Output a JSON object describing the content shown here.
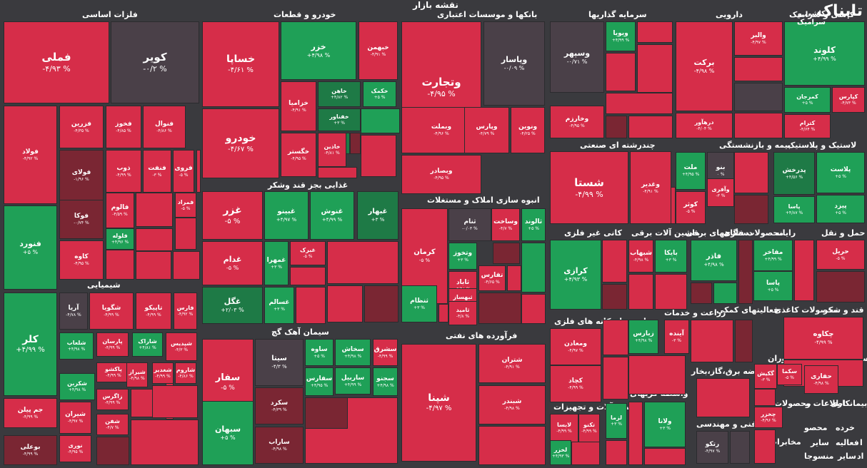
{
  "header": {
    "title": "نقشه بازار"
  },
  "logo": {
    "text": "تابناک",
    "subtitle": "کاشی و سرامیک"
  },
  "colors": {
    "red": "#d62d49",
    "red_dark": "#a8263c",
    "red_mid": "#c22a43",
    "maroon": "#7a2633",
    "dark": "#4a4048",
    "green": "#1fa057",
    "green_dark": "#1e7a46",
    "bg": "#3a3a3e"
  },
  "sections": [
    "فلزات اساسی",
    "خودرو و قطعات",
    "بانکها و موسسات اعتباری",
    "سرمایه گذاریها",
    "دارویی",
    "کاشی و سرامیک",
    "چندرشته ای صنعتی",
    "بیمه و بازنشستگی",
    "لاستیک و پلاستیک",
    "غذایی بجز قند وشکر",
    "انبوه سازی املاک و مستغلات",
    "کانی غیر فلزی",
    "ماشین آلات برقی",
    "دستگاههای برقی",
    "محصولات فلزی",
    "رایانه",
    "حمل و نقل",
    "شیمیایی",
    "سیمان آهک گچ",
    "فرآورده های نفتی",
    "استخراج کانه های فلزی",
    "زراعت و خدمات",
    "فعالیتهای کمکی",
    "محصولات کاغذی",
    "قند و شکر",
    "عرضه برق،گاز،بخار",
    "هتل و رستوران",
    "استخراج",
    "ماشین آلات و تجهیزات",
    "واسطه گریهای مالی",
    "فنی و مهندسی",
    "محصولات",
    "اطلاعات و",
    "بیمانکاری",
    "خرده",
    "محصو",
    "فعالیه",
    "سایر",
    "سایر",
    "منسوجا",
    "استخراج",
    "مخابرات",
    "اد",
    "ا"
  ],
  "tiles": [
    {
      "name": "فملی",
      "value": "-۴/۹۳ %",
      "color": "red"
    },
    {
      "name": "کویر",
      "value": "-۰/۲ %",
      "color": "dark"
    },
    {
      "name": "فولاد",
      "value": "-۴/۹۲ %",
      "color": "red"
    },
    {
      "name": "فزرین",
      "value": "-۴/۳۵ %",
      "color": "red"
    },
    {
      "name": "فخوز",
      "value": "-۴/۸۵ %",
      "color": "red"
    },
    {
      "name": "فنوال",
      "value": "-۴/۸۶ %",
      "color": "red"
    },
    {
      "name": "فولای",
      "value": "-۱/۹۶ %",
      "color": "maroon"
    },
    {
      "name": "ذوب",
      "value": "-۴/۹۹ %",
      "color": "red"
    },
    {
      "name": "فنفت",
      "value": "-۳ %",
      "color": "red"
    },
    {
      "name": "فروی",
      "value": "-۵ %",
      "color": "red"
    },
    {
      "name": "فالوم",
      "value": "-۴/۵۹ %",
      "color": "red"
    },
    {
      "name": "فمراد",
      "value": "-۵ %",
      "color": "red"
    },
    {
      "name": "فوکا",
      "value": "-۰/۷۴ %",
      "color": "maroon"
    },
    {
      "name": "فلوله",
      "value": "+۴/۹۶ %",
      "color": "green"
    },
    {
      "name": "فنورد",
      "value": "+۵ %",
      "color": "green"
    },
    {
      "name": "کاوه",
      "value": "-۴/۹۵ %",
      "color": "red"
    },
    {
      "name": "خساپا",
      "value": "-۴/۶۱ %",
      "color": "red"
    },
    {
      "name": "خزر",
      "value": "+۴/۹۸ %",
      "color": "green"
    },
    {
      "name": "خبهمن",
      "value": "-۴/۹۱ %",
      "color": "red"
    },
    {
      "name": "خزامیا",
      "value": "-۴/۹۱ %",
      "color": "red"
    },
    {
      "name": "خاهن",
      "value": "+۴/۸۲ %",
      "color": "green_dark"
    },
    {
      "name": "خکمک",
      "value": "+۵ %",
      "color": "green"
    },
    {
      "name": "خودرو",
      "value": "-۴/۶۷ %",
      "color": "red"
    },
    {
      "name": "خفناور",
      "value": "+۳ %",
      "color": "green_dark"
    },
    {
      "name": "خگستر",
      "value": "-۴/۹۵ %",
      "color": "red"
    },
    {
      "name": "خاذین",
      "value": "-۴/۸۱ %",
      "color": "red"
    },
    {
      "name": "وتجارت",
      "value": "-۴/۹۵ %",
      "color": "red"
    },
    {
      "name": "وپاسار",
      "value": "-۰/۰۹ %",
      "color": "dark"
    },
    {
      "name": "وبملت",
      "value": "-۴/۹۶ %",
      "color": "red"
    },
    {
      "name": "وپارس",
      "value": "-۴/۷۹ %",
      "color": "red"
    },
    {
      "name": "ونوین",
      "value": "-۴/۲۵ %",
      "color": "red"
    },
    {
      "name": "وبصادر",
      "value": "-۴/۹۵ %",
      "color": "red"
    },
    {
      "name": "وسپهر",
      "value": "-۰/۷۱ %",
      "color": "dark"
    },
    {
      "name": "ویویا",
      "value": "+۴/۹۹ %",
      "color": "green"
    },
    {
      "name": "وخارزم",
      "value": "-۴/۹۵ %",
      "color": "red"
    },
    {
      "name": "برکت",
      "value": "-۴/۹۸ %",
      "color": "red"
    },
    {
      "name": "والبر",
      "value": "-۴/۹۷ %",
      "color": "red"
    },
    {
      "name": "درهآور",
      "value": "-۴/۰۴ %",
      "color": "red"
    },
    {
      "name": "کلوند",
      "value": "+۴/۹۹ %",
      "color": "green"
    },
    {
      "name": "کمرجان",
      "value": "+۵ %",
      "color": "green"
    },
    {
      "name": "کپارس",
      "value": "-۴/۷۳ %",
      "color": "red"
    },
    {
      "name": "کترام",
      "value": "-۴/۶۴ %",
      "color": "red"
    },
    {
      "name": "شستا",
      "value": "-۴/۹۹ %",
      "color": "red"
    },
    {
      "name": "وغدیر",
      "value": "-۴/۹۱ %",
      "color": "red"
    },
    {
      "name": "ملت",
      "value": "+۴/۹۵ %",
      "color": "green"
    },
    {
      "name": "بنو",
      "value": "۰ %",
      "color": "dark"
    },
    {
      "name": "وآفری",
      "value": "-۳ %",
      "color": "red"
    },
    {
      "name": "کوثر",
      "value": "-۵ %",
      "color": "red"
    },
    {
      "name": "پدرخش",
      "value": "+۴/۵۶ %",
      "color": "green_dark"
    },
    {
      "name": "پلاست",
      "value": "+۵ %",
      "color": "green"
    },
    {
      "name": "پاسا",
      "value": "+۴/۸۷ %",
      "color": "green"
    },
    {
      "name": "پیزد",
      "value": "+۵ %",
      "color": "green"
    },
    {
      "name": "غزر",
      "value": "-۵ %",
      "color": "red"
    },
    {
      "name": "غبینو",
      "value": "+۴/۹۷ %",
      "color": "green"
    },
    {
      "name": "غنوش",
      "value": "+۴/۹۹ %",
      "color": "green"
    },
    {
      "name": "غبهار",
      "value": "+۳ %",
      "color": "green_dark"
    },
    {
      "name": "غدام",
      "value": "-۵ %",
      "color": "red"
    },
    {
      "name": "غمهرا",
      "value": "+۳ %",
      "color": "green"
    },
    {
      "name": "غبرک",
      "value": "-۵ %",
      "color": "red"
    },
    {
      "name": "غگل",
      "value": "+۲/۰۳ %",
      "color": "green_dark"
    },
    {
      "name": "غسالم",
      "value": "+۳ %",
      "color": "green"
    },
    {
      "name": "کرمان",
      "value": "-۵ %",
      "color": "red"
    },
    {
      "name": "ثنام",
      "value": "-۰/۰۳ %",
      "color": "dark"
    },
    {
      "name": "وساخت",
      "value": "-۴/۷ %",
      "color": "red"
    },
    {
      "name": "ثالوند",
      "value": "+۵ %",
      "color": "green"
    },
    {
      "name": "وتخوز",
      "value": "+۳ %",
      "color": "green"
    },
    {
      "name": "ثاباد",
      "value": "-۴/۹۸ %",
      "color": "red"
    },
    {
      "name": "ثبهساز",
      "value": "-۴/۸ %",
      "color": "red"
    },
    {
      "name": "تفارس",
      "value": "-۴/۶۵ %",
      "color": "red"
    },
    {
      "name": "ثامید",
      "value": "-۴/۸ %",
      "color": "red"
    },
    {
      "name": "ثنظام",
      "value": "+۳ %",
      "color": "green"
    },
    {
      "name": "کرازی",
      "value": "+۴/۹۳ %",
      "color": "green"
    },
    {
      "name": "شبهاب",
      "value": "-۴/۹۸ %",
      "color": "red"
    },
    {
      "name": "بایکا",
      "value": "+۳ %",
      "color": "green"
    },
    {
      "name": "فاذر",
      "value": "+۴/۹۸ %",
      "color": "green"
    },
    {
      "name": "مفاخر",
      "value": "+۴/۹۹ %",
      "color": "green"
    },
    {
      "name": "پاسا",
      "value": "+۵ %",
      "color": "green"
    },
    {
      "name": "حریل",
      "value": "-۵ %",
      "color": "red"
    },
    {
      "name": "آریا",
      "value": "-۴/۷۸ %",
      "color": "dark"
    },
    {
      "name": "شگویا",
      "value": "-۴/۹۹ %",
      "color": "red"
    },
    {
      "name": "تاپیکو",
      "value": "-۴/۹۹ %",
      "color": "red"
    },
    {
      "name": "فارس",
      "value": "-۴/۹۲ %",
      "color": "red"
    },
    {
      "name": "کلر",
      "value": "+۴/۹۹ %",
      "color": "green"
    },
    {
      "name": "شلعاب",
      "value": "+۴/۹۸ %",
      "color": "green"
    },
    {
      "name": "پارسان",
      "value": "-۴/۹۹ %",
      "color": "red"
    },
    {
      "name": "شاراک",
      "value": "+۴/۸۱ %",
      "color": "green"
    },
    {
      "name": "شپدیس",
      "value": "-۴/۳ %",
      "color": "red"
    },
    {
      "name": "شکربن",
      "value": "+۴/۹۸ %",
      "color": "green"
    },
    {
      "name": "پاکشو",
      "value": "-۴/۹۹ %",
      "color": "red"
    },
    {
      "name": "شیراز",
      "value": "-۴/۹۸ %",
      "color": "red"
    },
    {
      "name": "شغدیر",
      "value": "-۴/۹۹ %",
      "color": "red"
    },
    {
      "name": "شاروم",
      "value": "-۴/۸۶ %",
      "color": "red"
    },
    {
      "name": "زاگرس",
      "value": "-۴/۹۹ %",
      "color": "red"
    },
    {
      "name": "جم پیلن",
      "value": "-۴/۹۹ %",
      "color": "red"
    },
    {
      "name": "شیران",
      "value": "-۴/۹۷ %",
      "color": "red"
    },
    {
      "name": "شفن",
      "value": "-۴/۷ %",
      "color": "red"
    },
    {
      "name": "بوعلی",
      "value": "-۴/۹۹ %",
      "color": "maroon"
    },
    {
      "name": "نوری",
      "value": "-۴/۹۵ %",
      "color": "red"
    },
    {
      "name": "سفار",
      "value": "-۵ %",
      "color": "red"
    },
    {
      "name": "سیتا",
      "value": "-۴/۳ %",
      "color": "dark"
    },
    {
      "name": "ساوه",
      "value": "+۵ %",
      "color": "green"
    },
    {
      "name": "سخاش",
      "value": "+۴/۹۸ %",
      "color": "green"
    },
    {
      "name": "سشرق",
      "value": "-۴/۹۹ %",
      "color": "red"
    },
    {
      "name": "سفارس",
      "value": "+۴/۹۵ %",
      "color": "green"
    },
    {
      "name": "ساربیل",
      "value": "+۴/۹۹ %",
      "color": "green"
    },
    {
      "name": "سجنو",
      "value": "+۴/۹۸ %",
      "color": "green"
    },
    {
      "name": "سکرد",
      "value": "-۴/۳۹ %",
      "color": "maroon"
    },
    {
      "name": "سبهان",
      "value": "+۵ %",
      "color": "green"
    },
    {
      "name": "ساراب",
      "value": "-۴/۹۸ %",
      "color": "maroon"
    },
    {
      "name": "شتران",
      "value": "-۴/۹۱ %",
      "color": "red"
    },
    {
      "name": "شپنا",
      "value": "-۴/۹۷ %",
      "color": "red"
    },
    {
      "name": "شبندر",
      "value": "-۴/۹۸ %",
      "color": "red"
    },
    {
      "name": "ومعادن",
      "value": "-۴/۹۷ %",
      "color": "red"
    },
    {
      "name": "کچاد",
      "value": "-۴/۹۹ %",
      "color": "red"
    },
    {
      "name": "زبارس",
      "value": "+۴/۹۸ %",
      "color": "green"
    },
    {
      "name": "آینده",
      "value": "-۳ %",
      "color": "red"
    },
    {
      "name": "چکاوه",
      "value": "-۴/۹۹ %",
      "color": "red"
    },
    {
      "name": "لابسا",
      "value": "-۴/۹۹ %",
      "color": "red"
    },
    {
      "name": "تکنو",
      "value": "-۴/۹۹ %",
      "color": "red"
    },
    {
      "name": "لخزر",
      "value": "+۴/۹۳ %",
      "color": "green"
    },
    {
      "name": "لزما",
      "value": "+۳ %",
      "color": "green"
    },
    {
      "name": "ولانا",
      "value": "+۳ %",
      "color": "green"
    },
    {
      "name": "رتکو",
      "value": "-۴/۹۷ %",
      "color": "dark"
    },
    {
      "name": "سکما",
      "value": "-۵ %",
      "color": "red"
    },
    {
      "name": "گکیش",
      "value": "-۳ %",
      "color": "red"
    },
    {
      "name": "حفاری",
      "value": "-۴/۹۸ %",
      "color": "red"
    },
    {
      "name": "چخزر",
      "value": "-۴/۹۶ %",
      "color": "red"
    }
  ]
}
